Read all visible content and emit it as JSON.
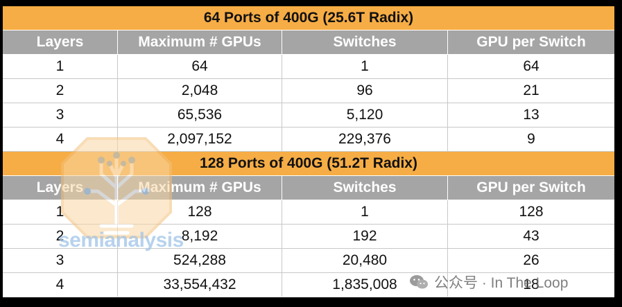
{
  "tables": [
    {
      "title": "64 Ports of 400G (25.6T Radix)",
      "headers": [
        "Layers",
        "Maximum # GPUs",
        "Switches",
        "GPU per Switch"
      ],
      "rows": [
        [
          "1",
          "64",
          "1",
          "64"
        ],
        [
          "2",
          "2,048",
          "96",
          "21"
        ],
        [
          "3",
          "65,536",
          "5,120",
          "13"
        ],
        [
          "4",
          "2,097,152",
          "229,376",
          "9"
        ]
      ]
    },
    {
      "title": "128 Ports of 400G (51.2T Radix)",
      "headers": [
        "Layers",
        "Maximum # GPUs",
        "Switches",
        "GPU per Switch"
      ],
      "rows": [
        [
          "1",
          "128",
          "1",
          "128"
        ],
        [
          "2",
          "8,192",
          "192",
          "43"
        ],
        [
          "3",
          "524,288",
          "20,480",
          "26"
        ],
        [
          "4",
          "33,554,432",
          "1,835,008",
          "18"
        ]
      ]
    }
  ],
  "watermark": {
    "brand": "semianalysis",
    "wechat_label": "公众号 · In The Loop",
    "icon": "wechat-icon"
  },
  "colors": {
    "banner": "#f6ad45",
    "header": "#a5a5a5",
    "background": "#000000"
  }
}
